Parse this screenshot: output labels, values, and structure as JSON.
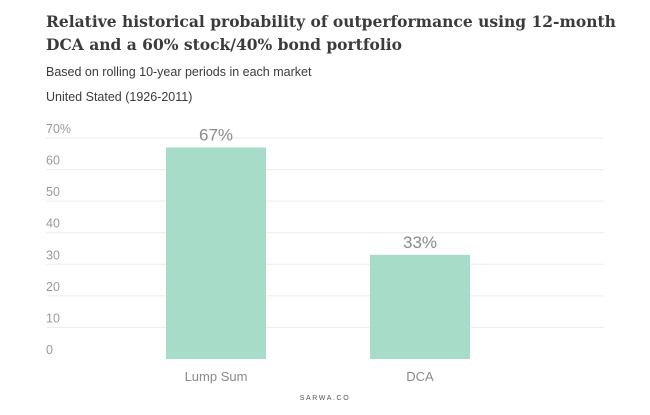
{
  "chart_data": {
    "type": "bar",
    "title": "Relative historical probability of outperformance using 12-month DCA and a 60% stock/40% bond portfolio",
    "subtitle": "Based on rolling 10-year periods in each market",
    "market_label": "United Stated (1926-2011)",
    "categories": [
      "Lump Sum",
      "DCA"
    ],
    "values": [
      67,
      33
    ],
    "data_labels": [
      "67%",
      "33%"
    ],
    "ylim": [
      0,
      70
    ],
    "yticks": [
      0,
      10,
      20,
      30,
      40,
      50,
      60,
      70
    ],
    "ytick_labels": [
      "0",
      "10",
      "20",
      "30",
      "40",
      "50",
      "60",
      "70%"
    ],
    "xlabel": "",
    "ylabel": "",
    "bar_color": "#a6dcc8",
    "grid": true
  },
  "footer": {
    "brand": "SARWA.CO"
  }
}
